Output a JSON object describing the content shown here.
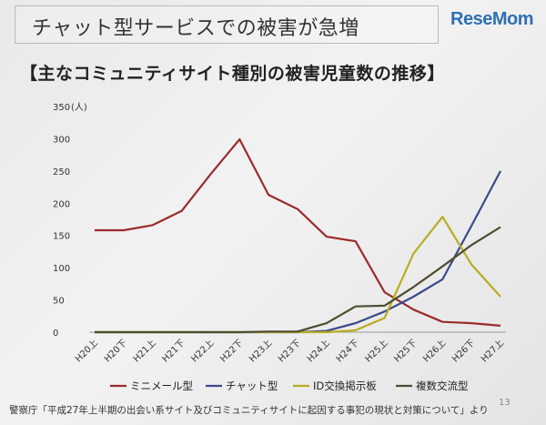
{
  "header": {
    "title": "チャット型サービスでの被害が急増",
    "logo_text": "ReseMom"
  },
  "page_number": "13",
  "source_note": "警察庁「平成27年上半期の出会い系サイト及びコミュニティサイトに起因する事犯の現状と対策について」より",
  "chart_data": {
    "type": "line",
    "title": "【主なコミュニティサイト種別の被害児童数の推移】",
    "ylabel": "(人)",
    "ylim": [
      0,
      350
    ],
    "yticks": [
      0,
      50,
      100,
      150,
      200,
      250,
      300,
      350
    ],
    "ytick_labels": [
      "0",
      "50",
      "100",
      "150",
      "200",
      "250",
      "300",
      "350"
    ],
    "grid": false,
    "legend_position": "bottom",
    "categories": [
      "H20上",
      "H20下",
      "H21上",
      "H21下",
      "H22上",
      "H22下",
      "H23上",
      "H23下",
      "H24上",
      "H24下",
      "H25上",
      "H25下",
      "H26上",
      "H26下",
      "H27上"
    ],
    "series": [
      {
        "name": "ミニメール型",
        "color": "#9b2b2b",
        "values": [
          158,
          158,
          166,
          188,
          245,
          299,
          213,
          191,
          148,
          141,
          62,
          35,
          16,
          14,
          10
        ]
      },
      {
        "name": "チャット型",
        "color": "#3a4a8a",
        "values": [
          0,
          0,
          0,
          0,
          0,
          0,
          0,
          0,
          2,
          14,
          32,
          55,
          82,
          165,
          250
        ]
      },
      {
        "name": "ID交換掲示板",
        "color": "#b8ad22",
        "values": [
          0,
          0,
          0,
          0,
          0,
          0,
          0,
          0,
          0,
          3,
          22,
          122,
          179,
          105,
          55
        ]
      },
      {
        "name": "複数交流型",
        "color": "#4d4d30",
        "values": [
          0,
          0,
          0,
          0,
          0,
          0,
          1,
          1,
          14,
          40,
          41,
          70,
          102,
          135,
          163
        ]
      }
    ]
  }
}
